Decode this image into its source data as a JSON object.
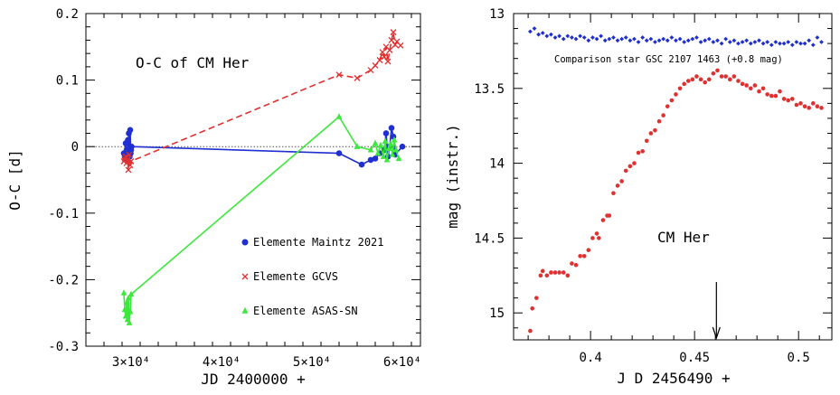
{
  "chart_data": [
    {
      "type": "scatter",
      "title": "O-C of CM Her",
      "xlabel": "JD 2400000 +",
      "ylabel": "O-C  [d]",
      "xlim": [
        25000,
        62000
      ],
      "ylim": [
        -0.3,
        0.2
      ],
      "xticks": [
        {
          "v": 30000,
          "label": "3×10⁴"
        },
        {
          "v": 40000,
          "label": "4×10⁴"
        },
        {
          "v": 50000,
          "label": "5×10⁴"
        },
        {
          "v": 60000,
          "label": "6×10⁴"
        }
      ],
      "yticks": [
        {
          "v": 0.2,
          "label": "0.2"
        },
        {
          "v": 0.1,
          "label": "0.1"
        },
        {
          "v": 0,
          "label": "0"
        },
        {
          "v": -0.1,
          "label": "-0.1"
        },
        {
          "v": -0.2,
          "label": "-0.2"
        },
        {
          "v": -0.3,
          "label": "-0.3"
        }
      ],
      "zero_line": true,
      "legend_position": "bottom-right",
      "series": [
        {
          "name": "Elemente Maintz 2021",
          "color": "#1f2fd0",
          "marker": "circle",
          "style": "solid",
          "x": [
            29200,
            29300,
            29400,
            29500,
            29600,
            29650,
            29700,
            29750,
            29800,
            29850,
            29900,
            29950,
            30000,
            30050,
            53000,
            55500,
            56500,
            57000,
            57500,
            58000,
            58200,
            58400,
            58600,
            58800,
            59000,
            59200,
            60000
          ],
          "y": [
            -0.01,
            -0.015,
            0.005,
            -0.005,
            -0.02,
            0.01,
            -0.012,
            0.02,
            -0.008,
            -0.015,
            0.025,
            -0.01,
            -0.005,
            0.0,
            -0.01,
            -0.027,
            -0.02,
            -0.018,
            -0.01,
            -0.005,
            0.02,
            -0.015,
            0.0,
            0.028,
            0.015,
            -0.012,
            0.0
          ]
        },
        {
          "name": "Elemente GCVS",
          "color": "#e03030",
          "marker": "x",
          "style": "dashed",
          "x": [
            29200,
            29300,
            29400,
            29500,
            29600,
            29700,
            29800,
            29900,
            30000,
            53000,
            55000,
            56500,
            57000,
            57500,
            57800,
            58000,
            58200,
            58400,
            58600,
            58800,
            59000,
            59200,
            59400,
            59800
          ],
          "y": [
            -0.022,
            -0.018,
            -0.015,
            -0.025,
            -0.02,
            -0.035,
            -0.012,
            -0.028,
            -0.022,
            0.108,
            0.103,
            0.115,
            0.122,
            0.13,
            0.142,
            0.135,
            0.15,
            0.128,
            0.145,
            0.16,
            0.172,
            0.153,
            0.158,
            0.152
          ]
        },
        {
          "name": "Elemente ASAS-SN",
          "color": "#3de83d",
          "marker": "triangle",
          "style": "solid",
          "x": [
            29200,
            29300,
            29400,
            29500,
            29600,
            29700,
            29800,
            29900,
            30000,
            53000,
            55000,
            56500,
            57000,
            57300,
            57600,
            57900,
            58100,
            58300,
            58500,
            58700,
            58900,
            59100,
            59300,
            59600
          ],
          "y": [
            -0.22,
            -0.245,
            -0.255,
            -0.235,
            -0.26,
            -0.228,
            -0.265,
            -0.248,
            -0.222,
            0.045,
            0.0,
            -0.005,
            0.005,
            -0.01,
            0.002,
            -0.015,
            0.008,
            -0.02,
            -0.003,
            0.004,
            -0.012,
            0.01,
            -0.005,
            -0.018
          ]
        }
      ]
    },
    {
      "type": "scatter",
      "title": "CM Her",
      "xlabel": "J D  2456490 +",
      "ylabel": "mag (instr.)",
      "xlim": [
        0.363,
        0.516
      ],
      "ylim": [
        15.18,
        13.0
      ],
      "y_inverted": true,
      "xticks": [
        {
          "v": 0.4,
          "label": "0.4"
        },
        {
          "v": 0.45,
          "label": "0.45"
        },
        {
          "v": 0.5,
          "label": "0.5"
        }
      ],
      "yticks": [
        {
          "v": 13,
          "label": "13"
        },
        {
          "v": 13.5,
          "label": "13.5"
        },
        {
          "v": 14,
          "label": "14"
        },
        {
          "v": 14.5,
          "label": "14.5"
        },
        {
          "v": 15,
          "label": "15"
        }
      ],
      "annotation": "Comparison star GSC 2107 1463 (+0.8 mag)",
      "arrow_at_x": 0.4605,
      "series": [
        {
          "name": "CM Her",
          "color": "#e03030",
          "marker": "circle",
          "x": [
            0.371,
            0.372,
            0.374,
            0.376,
            0.377,
            0.379,
            0.381,
            0.383,
            0.385,
            0.387,
            0.389,
            0.391,
            0.393,
            0.395,
            0.397,
            0.399,
            0.401,
            0.403,
            0.404,
            0.406,
            0.408,
            0.409,
            0.411,
            0.413,
            0.415,
            0.417,
            0.419,
            0.421,
            0.423,
            0.425,
            0.427,
            0.429,
            0.431,
            0.433,
            0.435,
            0.437,
            0.439,
            0.441,
            0.443,
            0.445,
            0.447,
            0.449,
            0.451,
            0.453,
            0.455,
            0.457,
            0.459,
            0.461,
            0.463,
            0.465,
            0.467,
            0.469,
            0.471,
            0.473,
            0.475,
            0.477,
            0.479,
            0.481,
            0.483,
            0.485,
            0.487,
            0.489,
            0.491,
            0.493,
            0.495,
            0.497,
            0.499,
            0.501,
            0.503,
            0.505,
            0.507,
            0.509,
            0.511
          ],
          "y": [
            15.12,
            14.97,
            14.9,
            14.75,
            14.72,
            14.75,
            14.73,
            14.73,
            14.73,
            14.73,
            14.75,
            14.67,
            14.68,
            14.62,
            14.62,
            14.58,
            14.5,
            14.47,
            14.5,
            14.38,
            14.35,
            14.35,
            14.2,
            14.15,
            14.12,
            14.05,
            14.02,
            14.0,
            13.93,
            13.92,
            13.85,
            13.8,
            13.78,
            13.72,
            13.68,
            13.62,
            13.58,
            13.54,
            13.5,
            13.47,
            13.45,
            13.44,
            13.42,
            13.44,
            13.46,
            13.44,
            13.4,
            13.38,
            13.42,
            13.42,
            13.44,
            13.42,
            13.45,
            13.47,
            13.48,
            13.5,
            13.48,
            13.52,
            13.5,
            13.54,
            13.55,
            13.55,
            13.52,
            13.57,
            13.58,
            13.57,
            13.61,
            13.6,
            13.62,
            13.63,
            13.6,
            13.62,
            13.63
          ]
        },
        {
          "name": "Comparison star GSC 2107 1463 (+0.8 mag)",
          "color": "#1f2fd0",
          "marker": "diamond",
          "x": [
            0.371,
            0.373,
            0.375,
            0.377,
            0.379,
            0.381,
            0.383,
            0.385,
            0.387,
            0.389,
            0.391,
            0.393,
            0.395,
            0.397,
            0.399,
            0.401,
            0.403,
            0.405,
            0.407,
            0.409,
            0.411,
            0.413,
            0.415,
            0.417,
            0.419,
            0.421,
            0.423,
            0.425,
            0.427,
            0.429,
            0.431,
            0.433,
            0.435,
            0.437,
            0.439,
            0.441,
            0.443,
            0.445,
            0.447,
            0.449,
            0.451,
            0.453,
            0.455,
            0.457,
            0.459,
            0.461,
            0.463,
            0.465,
            0.467,
            0.469,
            0.471,
            0.473,
            0.475,
            0.477,
            0.479,
            0.481,
            0.483,
            0.485,
            0.487,
            0.489,
            0.491,
            0.493,
            0.495,
            0.497,
            0.499,
            0.501,
            0.503,
            0.505,
            0.507,
            0.509,
            0.511
          ],
          "y": [
            13.12,
            13.1,
            13.14,
            13.13,
            13.15,
            13.14,
            13.16,
            13.15,
            13.17,
            13.15,
            13.16,
            13.17,
            13.15,
            13.16,
            13.18,
            13.16,
            13.17,
            13.15,
            13.18,
            13.17,
            13.16,
            13.18,
            13.17,
            13.16,
            13.18,
            13.17,
            13.19,
            13.16,
            13.18,
            13.17,
            13.19,
            13.18,
            13.17,
            13.18,
            13.16,
            13.18,
            13.17,
            13.19,
            13.18,
            13.17,
            13.16,
            13.19,
            13.18,
            13.17,
            13.19,
            13.18,
            13.2,
            13.17,
            13.19,
            13.18,
            13.2,
            13.19,
            13.18,
            13.2,
            13.19,
            13.18,
            13.2,
            13.19,
            13.21,
            13.19,
            13.2,
            13.2,
            13.19,
            13.21,
            13.19,
            13.2,
            13.2,
            13.18,
            13.21,
            13.16,
            13.19
          ]
        }
      ]
    }
  ]
}
